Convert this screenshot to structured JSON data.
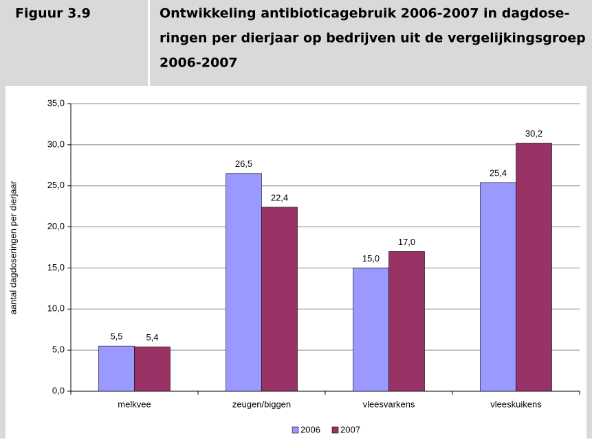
{
  "chart_data": {
    "type": "bar",
    "figure_label": "Figuur 3.9",
    "title": [
      "Ontwikkeling antibioticagebruik 2006-2007 in dagdose-",
      "ringen per dierjaar op bedrijven uit de vergelijkingsgroep",
      "2006-2007"
    ],
    "y_label": "aantal dagdoseringen per dierjaar",
    "categories": [
      "melkvee",
      "zeugen/biggen",
      "vleesvarkens",
      "vleeskuikens"
    ],
    "series": [
      {
        "name": "2006",
        "color": "#9999ff",
        "values": [
          5.5,
          26.5,
          15.0,
          25.4
        ],
        "value_labels": [
          "5,5",
          "26,5",
          "15,0",
          "25,4"
        ]
      },
      {
        "name": "2007",
        "color": "#993366",
        "values": [
          5.4,
          22.4,
          17.0,
          30.2
        ],
        "value_labels": [
          "5,4",
          "22,4",
          "17,0",
          "30,2"
        ]
      }
    ],
    "ylim": [
      0,
      35
    ],
    "yticks": [
      {
        "value": 0,
        "label": "0,0"
      },
      {
        "value": 5,
        "label": "5,0"
      },
      {
        "value": 10,
        "label": "10,0"
      },
      {
        "value": 15,
        "label": "15,0"
      },
      {
        "value": 20,
        "label": "20,0"
      },
      {
        "value": 25,
        "label": "25,0"
      },
      {
        "value": 30,
        "label": "30,0"
      },
      {
        "value": 35,
        "label": "35,0"
      }
    ],
    "grid": true,
    "legend": "bottom"
  }
}
